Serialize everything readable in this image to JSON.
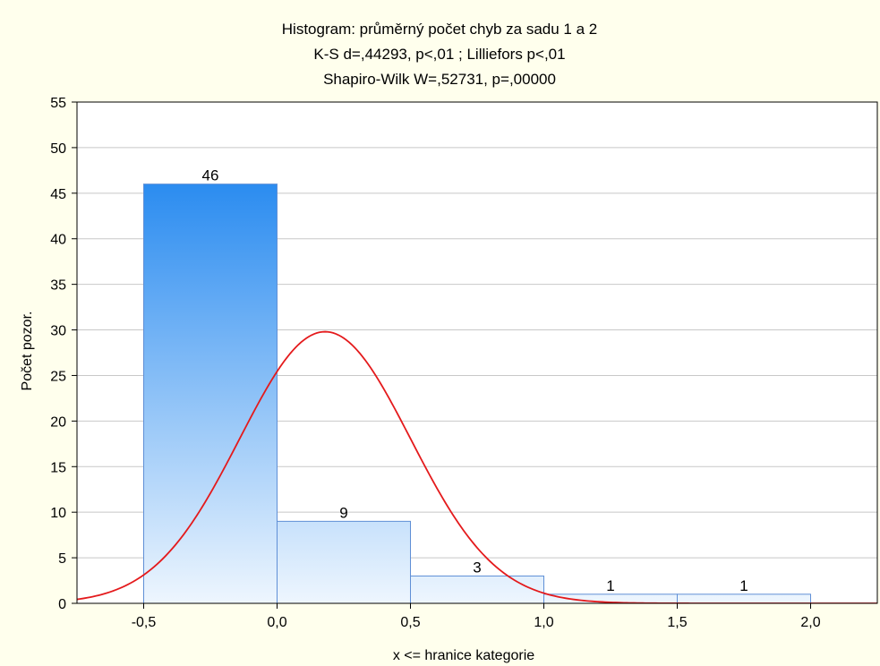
{
  "chart_data": {
    "type": "bar",
    "title": "Histogram: průměrný počet chyb za sadu 1 a 2",
    "subtitle_lines": [
      "K-S d=,44293, p<,01 ; Lilliefors p<,01",
      "Shapiro-Wilk W=,52731, p=,00000"
    ],
    "xlabel": "x <= hranice kategorie",
    "ylabel": "Počet pozor.",
    "xlim": [
      -0.75,
      2.25
    ],
    "ylim": [
      0,
      55
    ],
    "x_ticks": [
      -0.5,
      0.0,
      0.5,
      1.0,
      1.5,
      2.0
    ],
    "x_tick_labels": [
      "-0,5",
      "0,0",
      "0,5",
      "1,0",
      "1,5",
      "2,0"
    ],
    "y_ticks": [
      0,
      5,
      10,
      15,
      20,
      25,
      30,
      35,
      40,
      45,
      50,
      55
    ],
    "y_tick_labels": [
      "0",
      "5",
      "10",
      "15",
      "20",
      "25",
      "30",
      "35",
      "40",
      "45",
      "50",
      "55"
    ],
    "bins": [
      {
        "from": -0.5,
        "to": 0.0,
        "count": 46,
        "label": "46"
      },
      {
        "from": 0.0,
        "to": 0.5,
        "count": 9,
        "label": "9"
      },
      {
        "from": 0.5,
        "to": 1.0,
        "count": 3,
        "label": "3"
      },
      {
        "from": 1.0,
        "to": 1.5,
        "count": 1,
        "label": "1"
      },
      {
        "from": 1.5,
        "to": 2.0,
        "count": 1,
        "label": "1"
      }
    ],
    "normal_curve": {
      "mean": 0.18,
      "sd": 0.32,
      "peak": 29.8,
      "color": "#e41a1c"
    },
    "grid": true,
    "colors": {
      "bar_top": "#2b8cf0",
      "bar_bottom": "#eef6fe",
      "bar_stroke": "#5f8fd6",
      "frame_bg": "#ffffed",
      "plot_bg": "#ffffff"
    }
  }
}
